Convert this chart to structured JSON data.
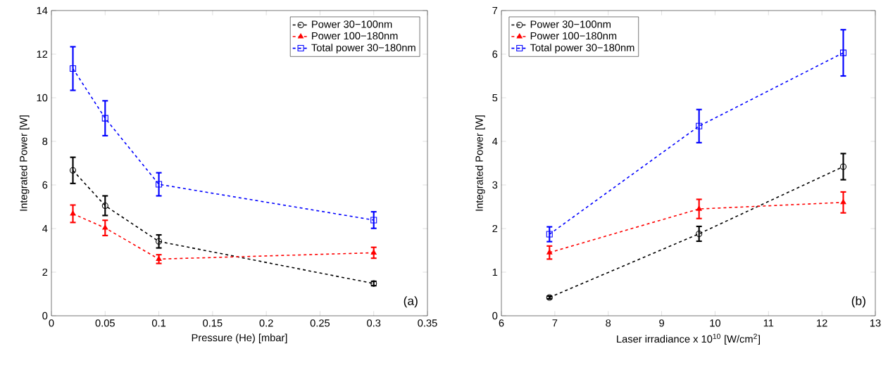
{
  "chart_data": [
    {
      "type": "line",
      "xlabel": "Pressure (He) [mbar]",
      "ylabel": "Integrated Power [W]",
      "x": [
        0.02,
        0.05,
        0.1,
        0.3
      ],
      "xlim": [
        0,
        0.35
      ],
      "xticks": [
        0,
        0.05,
        0.1,
        0.15,
        0.2,
        0.25,
        0.3,
        0.35
      ],
      "ylim": [
        0,
        14
      ],
      "yticks": [
        0,
        2,
        4,
        6,
        8,
        10,
        12,
        14
      ],
      "legend": "top right",
      "line_style": "dashed",
      "annotations": [
        "(a)"
      ],
      "series": [
        {
          "name": "Power 30−100nm",
          "color": "#000000",
          "marker": "circle",
          "values": [
            6.67,
            5.05,
            3.41,
            1.48
          ],
          "errors": [
            0.6,
            0.45,
            0.3,
            0.1
          ]
        },
        {
          "name": "Power 100−180nm",
          "color": "#ff0000",
          "marker": "triangle",
          "values": [
            4.68,
            4.03,
            2.6,
            2.89
          ],
          "errors": [
            0.4,
            0.35,
            0.2,
            0.25
          ]
        },
        {
          "name": "Total power 30−180nm",
          "color": "#0000ff",
          "marker": "square",
          "values": [
            11.34,
            9.06,
            6.03,
            4.39
          ],
          "errors": [
            1.0,
            0.8,
            0.53,
            0.38
          ]
        }
      ]
    },
    {
      "type": "line",
      "xlabel": "Laser irradiance x 10$^{10}$ [W/cm$^{2}$]",
      "ylabel": "Integrated Power [W]",
      "x": [
        6.9,
        9.7,
        12.4
      ],
      "xlim": [
        6,
        13
      ],
      "xticks": [
        6,
        7,
        8,
        9,
        10,
        11,
        12,
        13
      ],
      "ylim": [
        0,
        7
      ],
      "yticks": [
        0,
        1,
        2,
        3,
        4,
        5,
        6,
        7
      ],
      "legend": "top left",
      "line_style": "dashed",
      "annotations": [
        "(b)"
      ],
      "series": [
        {
          "name": "Power 30−100nm",
          "color": "#000000",
          "marker": "circle",
          "values": [
            0.42,
            1.88,
            3.42
          ],
          "errors": [
            0.03,
            0.17,
            0.3
          ]
        },
        {
          "name": "Power 100−180nm",
          "color": "#ff0000",
          "marker": "triangle",
          "values": [
            1.45,
            2.45,
            2.6
          ],
          "errors": [
            0.15,
            0.22,
            0.24
          ]
        },
        {
          "name": "Total power 30−180nm",
          "color": "#0000ff",
          "marker": "square",
          "values": [
            1.87,
            4.35,
            6.03
          ],
          "errors": [
            0.17,
            0.38,
            0.53
          ]
        }
      ]
    }
  ]
}
